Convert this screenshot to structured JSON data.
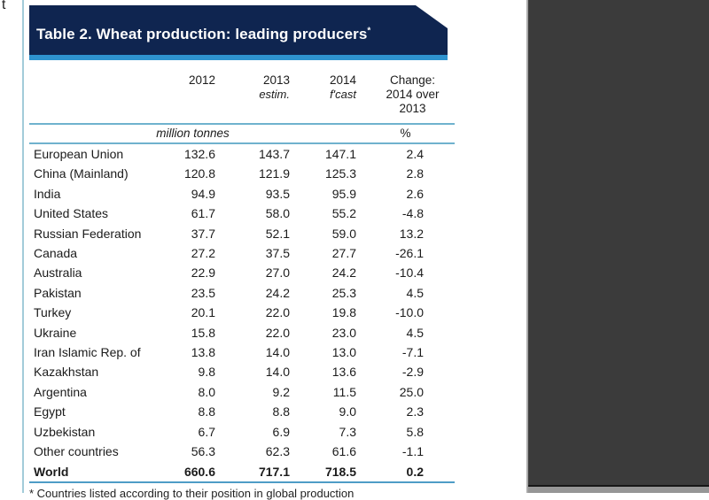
{
  "page": {
    "stray_text": "t"
  },
  "colors": {
    "banner_navy": "#0f2550",
    "stripe_blue": "#2e93cf",
    "rule_blue": "#6fb2ce",
    "bottom_rule_blue": "#4e9cc6",
    "side_panel_gray": "#3b3b3b"
  },
  "banner": {
    "title": "Table 2. Wheat production: leading producers",
    "asterisk": "*"
  },
  "chart_data": {
    "type": "table",
    "title": "Table 2. Wheat production: leading producers*",
    "units": "million tonnes",
    "change_units": "%",
    "columns": [
      "",
      "2012",
      "2013 estim.",
      "2014 f'cast",
      "Change: 2014 over 2013"
    ],
    "rows": [
      {
        "name": "European Union",
        "y2012": "132.6",
        "y2013": "143.7",
        "y2014": "147.1",
        "change": "2.4"
      },
      {
        "name": "China (Mainland)",
        "y2012": "120.8",
        "y2013": "121.9",
        "y2014": "125.3",
        "change": "2.8"
      },
      {
        "name": "India",
        "y2012": "94.9",
        "y2013": "93.5",
        "y2014": "95.9",
        "change": "2.6"
      },
      {
        "name": "United States",
        "y2012": "61.7",
        "y2013": "58.0",
        "y2014": "55.2",
        "change": "-4.8"
      },
      {
        "name": "Russian Federation",
        "y2012": "37.7",
        "y2013": "52.1",
        "y2014": "59.0",
        "change": "13.2"
      },
      {
        "name": "Canada",
        "y2012": "27.2",
        "y2013": "37.5",
        "y2014": "27.7",
        "change": "-26.1"
      },
      {
        "name": "Australia",
        "y2012": "22.9",
        "y2013": "27.0",
        "y2014": "24.2",
        "change": "-10.4"
      },
      {
        "name": "Pakistan",
        "y2012": "23.5",
        "y2013": "24.2",
        "y2014": "25.3",
        "change": "4.5"
      },
      {
        "name": "Turkey",
        "y2012": "20.1",
        "y2013": "22.0",
        "y2014": "19.8",
        "change": "-10.0"
      },
      {
        "name": "Ukraine",
        "y2012": "15.8",
        "y2013": "22.0",
        "y2014": "23.0",
        "change": "4.5"
      },
      {
        "name": "Iran Islamic Rep. of",
        "y2012": "13.8",
        "y2013": "14.0",
        "y2014": "13.0",
        "change": "-7.1"
      },
      {
        "name": "Kazakhstan",
        "y2012": "9.8",
        "y2013": "14.0",
        "y2014": "13.6",
        "change": "-2.9"
      },
      {
        "name": "Argentina",
        "y2012": "8.0",
        "y2013": "9.2",
        "y2014": "11.5",
        "change": "25.0"
      },
      {
        "name": "Egypt",
        "y2012": "8.8",
        "y2013": "8.8",
        "y2014": "9.0",
        "change": "2.3"
      },
      {
        "name": "Uzbekistan",
        "y2012": "6.7",
        "y2013": "6.9",
        "y2014": "7.3",
        "change": "5.8"
      },
      {
        "name": "Other countries",
        "y2012": "56.3",
        "y2013": "62.3",
        "y2014": "61.6",
        "change": "-1.1"
      }
    ],
    "total_row": {
      "name": "World",
      "y2012": "660.6",
      "y2013": "717.1",
      "y2014": "718.5",
      "change": "0.2"
    }
  },
  "table_headers": {
    "c2012": "2012",
    "c2013": "2013",
    "c2013_sub": "estim.",
    "c2014": "2014",
    "c2014_sub": "f'cast",
    "change_line1": "Change:",
    "change_line2": "2014 over",
    "change_line3": "2013"
  },
  "units_row": {
    "units": "million tonnes",
    "percent": "%"
  },
  "footnote": "* Countries listed according to their position in global production"
}
